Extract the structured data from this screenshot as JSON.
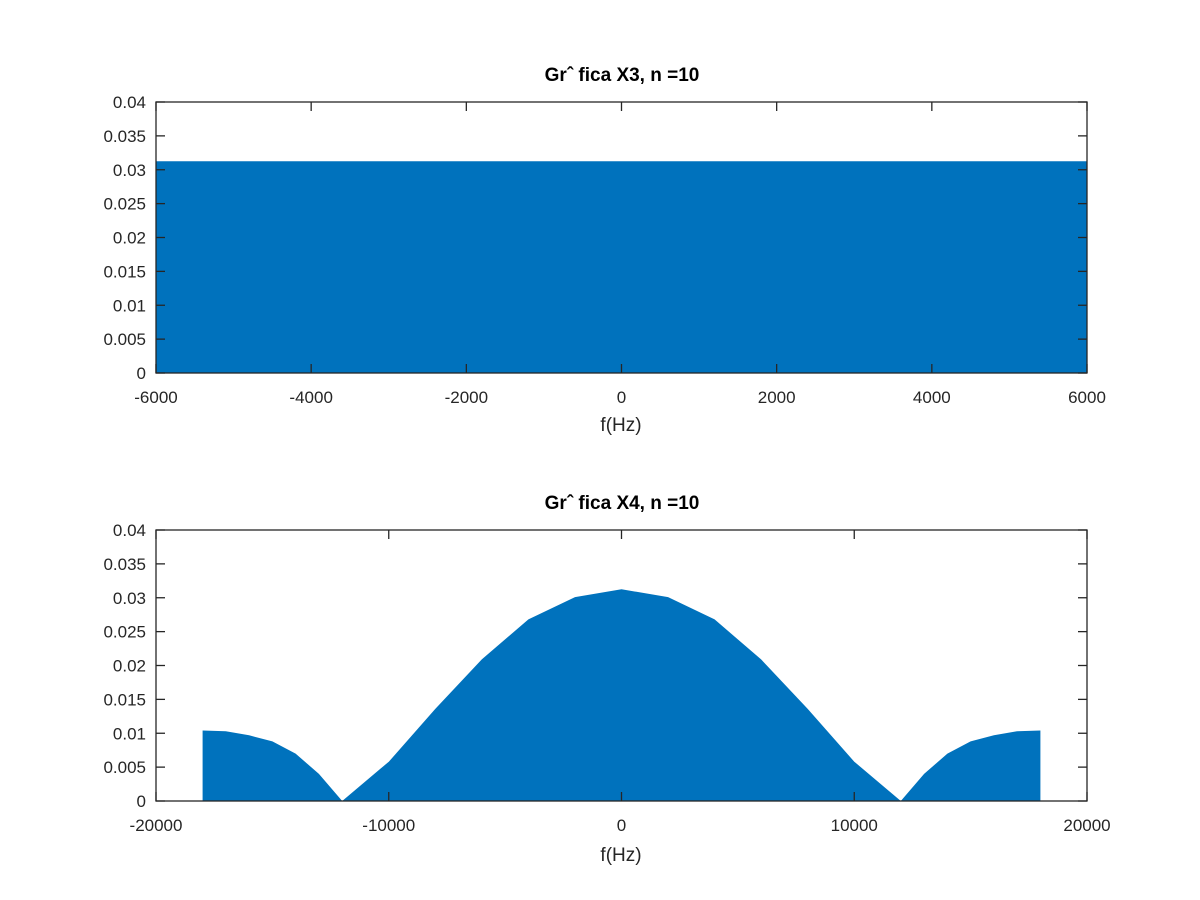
{
  "chart_data": [
    {
      "type": "area",
      "title": "Grˆ fica X3, n =10",
      "xlabel": "f(Hz)",
      "ylabel": "",
      "xlim": [
        -6000,
        6000
      ],
      "ylim": [
        0,
        0.04
      ],
      "xticks": [
        -6000,
        -4000,
        -2000,
        0,
        2000,
        4000,
        6000
      ],
      "xtick_labels": [
        "-6000",
        "-4000",
        "-2000",
        "0",
        "2000",
        "4000",
        "6000"
      ],
      "yticks": [
        0,
        0.005,
        0.01,
        0.015,
        0.02,
        0.025,
        0.03,
        0.035,
        0.04
      ],
      "ytick_labels": [
        "0",
        "0.005",
        "0.01",
        "0.015",
        "0.02",
        "0.025",
        "0.03",
        "0.035",
        "0.04"
      ],
      "grid": false,
      "color": "#0072bd",
      "series": [
        {
          "x": [
            -6000,
            6000
          ],
          "y": [
            0.03125,
            0.03125
          ]
        }
      ]
    },
    {
      "type": "area",
      "title": "Grˆ fica X4, n =10",
      "xlabel": "f(Hz)",
      "ylabel": "",
      "xlim": [
        -20000,
        20000
      ],
      "ylim": [
        0,
        0.04
      ],
      "xticks": [
        -20000,
        -10000,
        0,
        10000,
        20000
      ],
      "xtick_labels": [
        "-20000",
        "-10000",
        "0",
        "10000",
        "20000"
      ],
      "yticks": [
        0,
        0.005,
        0.01,
        0.015,
        0.02,
        0.025,
        0.03,
        0.035,
        0.04
      ],
      "ytick_labels": [
        "0",
        "0.005",
        "0.01",
        "0.015",
        "0.02",
        "0.025",
        "0.03",
        "0.035",
        "0.04"
      ],
      "grid": false,
      "color": "#0072bd",
      "series": [
        {
          "x": [
            -18000,
            -17000,
            -16000,
            -15000,
            -14000,
            -13000,
            -12000,
            -10000,
            -8000,
            -6000,
            -4000,
            -2000,
            0,
            2000,
            4000,
            6000,
            8000,
            10000,
            12000,
            13000,
            14000,
            15000,
            16000,
            17000,
            18000
          ],
          "y": [
            0.0104,
            0.0103,
            0.0097,
            0.0088,
            0.007,
            0.004,
            0.0,
            0.0058,
            0.0136,
            0.0209,
            0.0268,
            0.0301,
            0.03125,
            0.0301,
            0.0268,
            0.0209,
            0.0136,
            0.0058,
            0.0,
            0.004,
            0.007,
            0.0088,
            0.0097,
            0.0103,
            0.0104
          ]
        }
      ]
    }
  ]
}
